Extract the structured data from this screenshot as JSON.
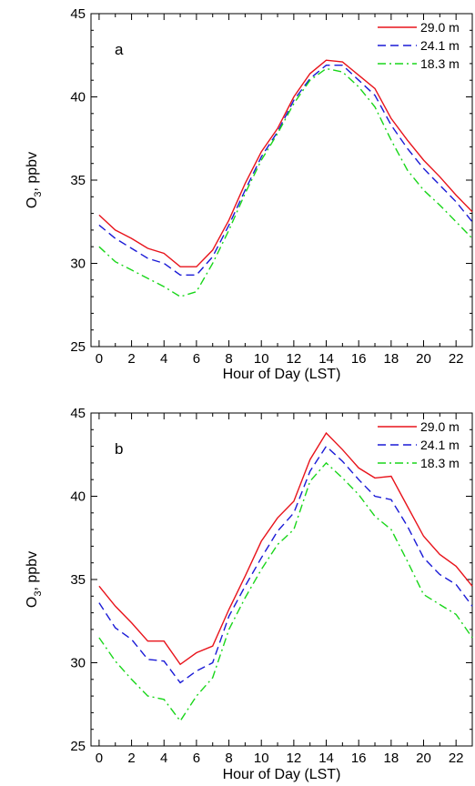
{
  "chart_data": [
    {
      "type": "line",
      "panel_label": "a",
      "xlabel": "Hour of Day (LST)",
      "ylabel_main": "O",
      "ylabel_sub": "3",
      "ylabel_rest": ", ppbv",
      "xlim": [
        -0.5,
        23
      ],
      "ylim": [
        25,
        45
      ],
      "xticks": [
        "0",
        "2",
        "4",
        "6",
        "8",
        "10",
        "12",
        "14",
        "16",
        "18",
        "20",
        "22"
      ],
      "yticks": [
        "25",
        "30",
        "35",
        "40",
        "45"
      ],
      "legend_position": "top-right",
      "x": [
        0,
        1,
        2,
        3,
        4,
        5,
        6,
        7,
        8,
        9,
        10,
        11,
        12,
        13,
        14,
        15,
        16,
        17,
        18,
        19,
        20,
        21,
        22,
        23
      ],
      "series": [
        {
          "name": "29.0 m",
          "color": "#e8131b",
          "dash": "solid",
          "values": [
            32.9,
            32.0,
            31.5,
            30.9,
            30.6,
            29.8,
            29.8,
            30.8,
            32.6,
            34.8,
            36.7,
            38.1,
            40.0,
            41.4,
            42.2,
            42.1,
            41.3,
            40.5,
            38.7,
            37.4,
            36.2,
            35.2,
            34.1,
            33.1
          ]
        },
        {
          "name": "24.1 m",
          "color": "#1a1ad6",
          "dash": "dashed",
          "values": [
            32.3,
            31.5,
            30.9,
            30.3,
            30.0,
            29.3,
            29.3,
            30.4,
            32.3,
            34.4,
            36.4,
            37.9,
            39.8,
            41.1,
            41.9,
            41.9,
            41.0,
            40.1,
            38.3,
            36.9,
            35.7,
            34.7,
            33.7,
            32.5
          ]
        },
        {
          "name": "18.3 m",
          "color": "#19d61a",
          "dash": "dashdot",
          "values": [
            31.0,
            30.1,
            29.6,
            29.1,
            28.6,
            28.0,
            28.3,
            30.0,
            32.0,
            34.2,
            36.2,
            37.8,
            39.6,
            41.0,
            41.7,
            41.5,
            40.6,
            39.4,
            37.4,
            35.6,
            34.4,
            33.5,
            32.5,
            31.5
          ]
        }
      ]
    },
    {
      "type": "line",
      "panel_label": "b",
      "xlabel": "Hour of Day (LST)",
      "ylabel_main": "O",
      "ylabel_sub": "3",
      "ylabel_rest": ", ppbv",
      "xlim": [
        -0.5,
        23
      ],
      "ylim": [
        25,
        45
      ],
      "xticks": [
        "0",
        "2",
        "4",
        "6",
        "8",
        "10",
        "12",
        "14",
        "16",
        "18",
        "20",
        "22"
      ],
      "yticks": [
        "25",
        "30",
        "35",
        "40",
        "45"
      ],
      "legend_position": "top-right",
      "x": [
        0,
        1,
        2,
        3,
        4,
        5,
        6,
        7,
        8,
        9,
        10,
        11,
        12,
        13,
        14,
        15,
        16,
        17,
        18,
        19,
        20,
        21,
        22,
        23
      ],
      "series": [
        {
          "name": "29.0 m",
          "color": "#e8131b",
          "dash": "solid",
          "values": [
            34.6,
            33.4,
            32.4,
            31.3,
            31.3,
            29.9,
            30.6,
            31.0,
            33.2,
            35.2,
            37.3,
            38.7,
            39.7,
            42.2,
            43.8,
            42.8,
            41.7,
            41.1,
            41.2,
            39.4,
            37.6,
            36.5,
            35.8,
            34.6
          ]
        },
        {
          "name": "24.1 m",
          "color": "#1a1ad6",
          "dash": "dashed",
          "values": [
            33.6,
            32.1,
            31.4,
            30.2,
            30.1,
            28.8,
            29.5,
            30.0,
            32.8,
            34.6,
            36.3,
            37.9,
            39.0,
            41.5,
            43.0,
            42.1,
            41.0,
            40.0,
            39.8,
            38.2,
            36.3,
            35.3,
            34.7,
            33.4
          ]
        },
        {
          "name": "18.3 m",
          "color": "#19d61a",
          "dash": "dashdot",
          "values": [
            31.5,
            30.1,
            29.0,
            28.0,
            27.8,
            26.5,
            28.0,
            29.1,
            32.0,
            33.9,
            35.6,
            37.1,
            38.0,
            40.9,
            42.0,
            41.1,
            40.1,
            38.8,
            38.0,
            36.1,
            34.1,
            33.5,
            32.9,
            31.5
          ]
        }
      ]
    }
  ]
}
